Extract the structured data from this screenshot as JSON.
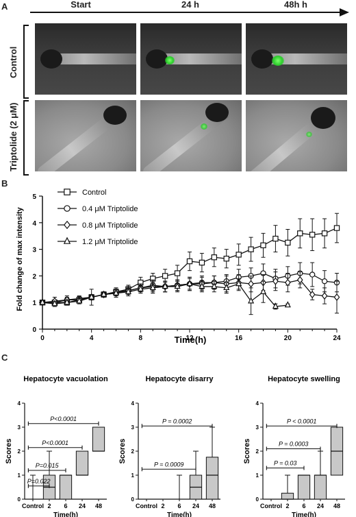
{
  "panelA": {
    "letter": "A",
    "timepoints": [
      "Start",
      "24 h",
      "48h h"
    ],
    "rows": [
      "Control",
      "Triptolide (2 μM)"
    ]
  },
  "panelB": {
    "letter": "B",
    "ylabel": "Fold change of max intensity",
    "xlabel": "Time(h)",
    "xticks": [
      "0",
      "4",
      "8",
      "12",
      "16",
      "20",
      "24"
    ],
    "yticks": [
      "0",
      "1",
      "2",
      "3",
      "4",
      "5"
    ],
    "legend": [
      "Control",
      "0.4 μM Triptolide",
      "0.8 μM Triptolide",
      "1.2 μM Triptolide"
    ]
  },
  "panelC": {
    "letter": "C",
    "ylabel": "Scores",
    "xlabel": "Time(h)",
    "categories": [
      "Control",
      "2",
      "6",
      "24",
      "48"
    ],
    "yticks": [
      "0",
      "1",
      "2",
      "3",
      "4"
    ],
    "charts": [
      {
        "title": "Hepatocyte vacuolation",
        "pvals": [
          "P=0.022",
          "P=0.015",
          "P<0.0001",
          "P<0.0001"
        ]
      },
      {
        "title": "Hepatocyte disarry",
        "pvals": [
          "P = 0.0009",
          "P = 0.0002"
        ]
      },
      {
        "title": "Hepatocyte swelling",
        "pvals": [
          "P = 0.03",
          "P = 0.0003",
          "P < 0.0001"
        ]
      }
    ]
  },
  "chart_data": [
    {
      "type": "line",
      "xlabel": "Time(h)",
      "ylabel": "Fold change of max intensity",
      "xlim": [
        0,
        24
      ],
      "ylim": [
        0,
        5
      ],
      "series": [
        {
          "name": "Control",
          "marker": "square",
          "x": [
            0,
            1,
            2,
            3,
            4,
            5,
            6,
            7,
            8,
            9,
            10,
            11,
            12,
            13,
            14,
            15,
            16,
            17,
            18,
            19,
            20,
            21,
            22,
            23,
            24
          ],
          "y": [
            1.0,
            1.0,
            1.0,
            1.1,
            1.2,
            1.3,
            1.4,
            1.5,
            1.75,
            1.9,
            2.0,
            2.1,
            2.55,
            2.5,
            2.7,
            2.65,
            2.8,
            3.0,
            3.15,
            3.4,
            3.25,
            3.6,
            3.55,
            3.6,
            3.8
          ],
          "err": [
            0.05,
            0.1,
            0.1,
            0.1,
            0.1,
            0.1,
            0.15,
            0.15,
            0.2,
            0.2,
            0.25,
            0.3,
            0.35,
            0.35,
            0.35,
            0.35,
            0.4,
            0.45,
            0.45,
            0.5,
            0.5,
            0.55,
            0.6,
            0.55,
            0.55
          ]
        },
        {
          "name": "0.4 μM Triptolide",
          "marker": "circle",
          "x": [
            0,
            1,
            2,
            3,
            4,
            5,
            6,
            7,
            8,
            9,
            10,
            11,
            12,
            13,
            14,
            15,
            16,
            17,
            18,
            19,
            20,
            21,
            22,
            23,
            24
          ],
          "y": [
            1.0,
            1.0,
            1.1,
            1.15,
            1.2,
            1.3,
            1.4,
            1.45,
            1.55,
            1.65,
            1.6,
            1.65,
            1.7,
            1.75,
            1.75,
            1.8,
            1.95,
            2.0,
            2.1,
            1.9,
            2.0,
            2.1,
            2.05,
            1.8,
            1.75
          ],
          "err": [
            0.05,
            0.1,
            0.1,
            0.1,
            0.1,
            0.1,
            0.15,
            0.15,
            0.15,
            0.2,
            0.2,
            0.2,
            0.25,
            0.25,
            0.25,
            0.25,
            0.3,
            0.3,
            0.35,
            0.35,
            0.35,
            0.4,
            0.45,
            0.4,
            0.35
          ]
        },
        {
          "name": "0.8 μM Triptolide",
          "marker": "diamond",
          "x": [
            0,
            1,
            2,
            3,
            4,
            5,
            6,
            7,
            8,
            9,
            10,
            11,
            12,
            13,
            14,
            15,
            16,
            17,
            18,
            19,
            20,
            21,
            22,
            23,
            24
          ],
          "y": [
            1.0,
            1.05,
            1.1,
            1.1,
            1.2,
            1.3,
            1.35,
            1.45,
            1.55,
            1.6,
            1.6,
            1.65,
            1.7,
            1.7,
            1.75,
            1.7,
            1.75,
            1.7,
            1.75,
            1.8,
            1.75,
            1.85,
            1.3,
            1.25,
            1.2
          ],
          "err": [
            0.05,
            0.15,
            0.15,
            0.1,
            0.3,
            0.1,
            0.15,
            0.2,
            0.15,
            0.2,
            0.2,
            0.2,
            0.25,
            0.25,
            0.25,
            0.3,
            0.3,
            0.3,
            0.3,
            0.35,
            0.35,
            0.3,
            0.2,
            0.3,
            0.6
          ]
        },
        {
          "name": "1.2 μM Triptolide",
          "marker": "triangle",
          "x": [
            0,
            1,
            2,
            3,
            4,
            5,
            6,
            7,
            8,
            9,
            10,
            11,
            12,
            13,
            14,
            15,
            16,
            17,
            18,
            19,
            20
          ],
          "y": [
            1.0,
            0.95,
            1.0,
            1.05,
            1.2,
            1.3,
            1.35,
            1.4,
            1.5,
            1.55,
            1.6,
            1.6,
            1.7,
            1.6,
            1.6,
            1.55,
            1.7,
            1.05,
            1.4,
            0.85,
            0.9
          ],
          "err": [
            0.05,
            0.1,
            0.1,
            0.1,
            0.1,
            0.1,
            0.15,
            0.15,
            0.15,
            0.2,
            0.2,
            0.2,
            0.2,
            0.2,
            0.2,
            0.2,
            0.2,
            0.5,
            0.4,
            0.1,
            0.05
          ]
        }
      ]
    },
    {
      "type": "box",
      "title": "Hepatocyte vacuolation",
      "categories": [
        "Control",
        "2",
        "6",
        "24",
        "48"
      ],
      "ylabel": "Scores",
      "xlabel": "Time(h)",
      "ylim": [
        0,
        4
      ],
      "boxes": [
        {
          "min": 0,
          "q1": 0,
          "median": 0,
          "q3": 0,
          "max": 1
        },
        {
          "min": 0,
          "q1": 0,
          "median": 0.5,
          "q3": 1,
          "max": 2
        },
        {
          "min": 0,
          "q1": 0,
          "median": 1,
          "q3": 1,
          "max": 1
        },
        {
          "min": 1,
          "q1": 1,
          "median": 1,
          "q3": 2,
          "max": 2
        },
        {
          "min": 2,
          "q1": 2,
          "median": 2,
          "q3": 3,
          "max": 3
        }
      ]
    },
    {
      "type": "box",
      "title": "Hepatocyte disarry",
      "categories": [
        "Control",
        "2",
        "6",
        "24",
        "48"
      ],
      "ylabel": "Scores",
      "xlabel": "Time(h)",
      "ylim": [
        0,
        4
      ],
      "boxes": [
        {
          "min": 0,
          "q1": 0,
          "median": 0,
          "q3": 0,
          "max": 0
        },
        {
          "min": 0,
          "q1": 0,
          "median": 0,
          "q3": 0,
          "max": 0
        },
        {
          "min": 0,
          "q1": 0,
          "median": 0,
          "q3": 0,
          "max": 1
        },
        {
          "min": 0,
          "q1": 0,
          "median": 0.5,
          "q3": 1,
          "max": 2
        },
        {
          "min": 0,
          "q1": 0,
          "median": 1,
          "q3": 1.75,
          "max": 3
        }
      ]
    },
    {
      "type": "box",
      "title": "Hepatocyte swelling",
      "categories": [
        "Control",
        "2",
        "6",
        "24",
        "48"
      ],
      "ylabel": "Scores",
      "xlabel": "Time(h)",
      "ylim": [
        0,
        4
      ],
      "boxes": [
        {
          "min": 0,
          "q1": 0,
          "median": 0,
          "q3": 0,
          "max": 0
        },
        {
          "min": 0,
          "q1": 0,
          "median": 0,
          "q3": 0.25,
          "max": 1
        },
        {
          "min": 0,
          "q1": 0,
          "median": 1,
          "q3": 1,
          "max": 1
        },
        {
          "min": 0,
          "q1": 0,
          "median": 1,
          "q3": 1,
          "max": 2
        },
        {
          "min": 1,
          "q1": 1,
          "median": 2,
          "q3": 3,
          "max": 3
        }
      ]
    }
  ]
}
